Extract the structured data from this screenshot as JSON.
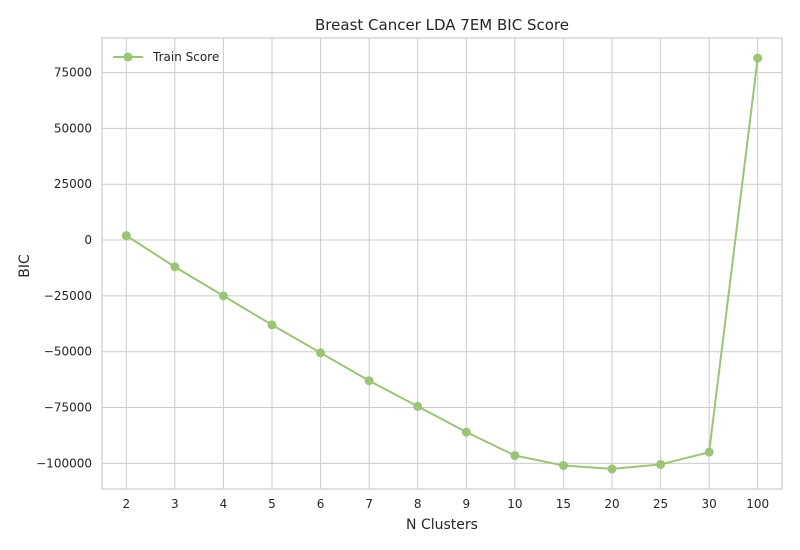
{
  "chart_data": {
    "type": "line",
    "title": "Breast Cancer LDA 7EM BIC Score",
    "xlabel": "N Clusters",
    "ylabel": "BIC",
    "categories": [
      "2",
      "3",
      "4",
      "5",
      "6",
      "7",
      "8",
      "9",
      "10",
      "15",
      "20",
      "25",
      "30",
      "100"
    ],
    "series": [
      {
        "name": "Train Score",
        "color": "#9dc377",
        "values": [
          2000,
          -12000,
          -25000,
          -38000,
          -50500,
          -63000,
          -74500,
          -86000,
          -96500,
          -101000,
          -102500,
          -100500,
          -95000,
          81500
        ]
      }
    ],
    "ylim": [
      -111500,
      90500
    ],
    "yticks": [
      -100000,
      -75000,
      -50000,
      -25000,
      0,
      25000,
      50000,
      75000
    ],
    "ytick_labels": [
      "−100000",
      "−75000",
      "−50000",
      "−25000",
      "0",
      "25000",
      "50000",
      "75000"
    ],
    "grid": true,
    "legend_position": "top-left"
  }
}
